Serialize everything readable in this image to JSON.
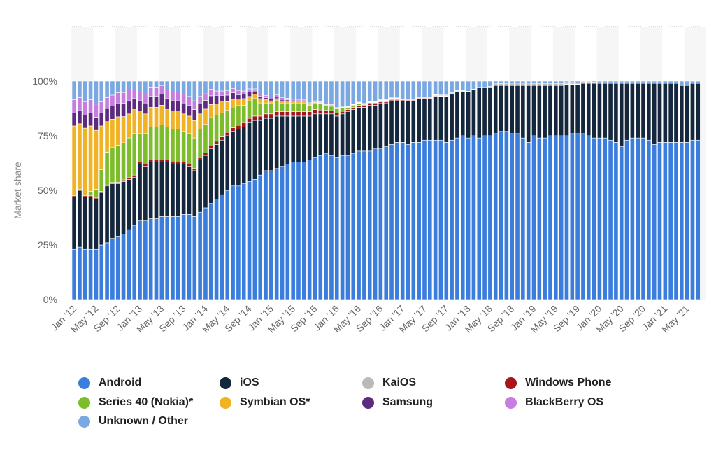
{
  "chart_data": {
    "type": "bar",
    "stacked": true,
    "title": "",
    "xlabel": "",
    "ylabel": "Market share",
    "ylim": [
      0,
      100
    ],
    "y_ticks": [
      "0%",
      "25%",
      "50%",
      "75%",
      "100%"
    ],
    "first_month": "Jan 2012",
    "last_month": "Jul 2021",
    "x_tick_labels": [
      "Jan '12",
      "May '12",
      "Sep '12",
      "Jan '13",
      "May '13",
      "Sep '13",
      "Jan '14",
      "May '14",
      "Sep '14",
      "Jan '15",
      "May '15",
      "Sep '15",
      "Jan '16",
      "May '16",
      "Sep '16",
      "Jan '17",
      "May '17",
      "Sep '17",
      "Jan '18",
      "May '18",
      "Sep '18",
      "Jan '19",
      "May '19",
      "Sep '19",
      "Jan '20",
      "May '20",
      "Sep '20",
      "Jan '21",
      "May '21"
    ],
    "legend_position": "bottom",
    "series": [
      {
        "name": "Android",
        "color": "#3b7ddd",
        "values": [
          23,
          24,
          23,
          23,
          23,
          25,
          26,
          28,
          29,
          30,
          32,
          34,
          36,
          36,
          37,
          37,
          38,
          38,
          38,
          38,
          39,
          39,
          38,
          40,
          42,
          44,
          46,
          48,
          50,
          52,
          52,
          53,
          54,
          55,
          57,
          59,
          59,
          60,
          61,
          62,
          63,
          63,
          63,
          64,
          65,
          66,
          67,
          66,
          65,
          66,
          66,
          67,
          68,
          68,
          68,
          69,
          69,
          70,
          71,
          72,
          72,
          71,
          72,
          72,
          73,
          73,
          73,
          73,
          72,
          73,
          74,
          75,
          74,
          75,
          74,
          75,
          75,
          76,
          77,
          77,
          76,
          76,
          74,
          72,
          75,
          74,
          74,
          75,
          75,
          75,
          75,
          76,
          76,
          76,
          75,
          74,
          74,
          74,
          73,
          72,
          70,
          73,
          74,
          74,
          74,
          73,
          71,
          72,
          72,
          72,
          72,
          72,
          72,
          73,
          73
        ]
      },
      {
        "name": "iOS",
        "color": "#14273c",
        "values": [
          24,
          26,
          24,
          24,
          23,
          24,
          26,
          25,
          24,
          24,
          23,
          22,
          26,
          25,
          26,
          26,
          25,
          25,
          24,
          24,
          23,
          22,
          21,
          24,
          24,
          25,
          25,
          25,
          25,
          25,
          26,
          26,
          27,
          27,
          25,
          24,
          24,
          24,
          23,
          22,
          21,
          21,
          21,
          20,
          20,
          19,
          18,
          19,
          19,
          19,
          20,
          20,
          20,
          20,
          21,
          20,
          21,
          20,
          20,
          19,
          19,
          20,
          19,
          20,
          19,
          19,
          20,
          20,
          21,
          21,
          21,
          20,
          21,
          21,
          23,
          22,
          22,
          22,
          21,
          21,
          22,
          22,
          24,
          26,
          23,
          24,
          24,
          23,
          23,
          23,
          23.5,
          22.5,
          22.5,
          23,
          24,
          25,
          25,
          25,
          26,
          27,
          29,
          26,
          25,
          25,
          25,
          26,
          28,
          27,
          27,
          27,
          27,
          26,
          26,
          26,
          26
        ]
      },
      {
        "name": "Windows Phone",
        "color": "#a5151a",
        "values": [
          0.5,
          0.5,
          0.5,
          0.5,
          0.5,
          0.5,
          0.5,
          0.6,
          0.7,
          0.8,
          1,
          1,
          1,
          1,
          1,
          1,
          1,
          1,
          1,
          1,
          1,
          1,
          1,
          1,
          1.2,
          1.3,
          1.5,
          1.5,
          1.6,
          1.7,
          1.8,
          2,
          2,
          2,
          2,
          2,
          2,
          2,
          2,
          2,
          2,
          2,
          2,
          2,
          2,
          1.8,
          1.6,
          1.5,
          1.4,
          1.2,
          1,
          1,
          0.9,
          0.8,
          0.7,
          0.6,
          0.5,
          0.5,
          0.4,
          0.4,
          0.4,
          0.3,
          0.3,
          0.3,
          0.3,
          0.3,
          0.3,
          0.2,
          0.2,
          0.2,
          0.2,
          0.2,
          0.2,
          0.2,
          0.1,
          0.1,
          0.1,
          0.1,
          0.1,
          0.1,
          0.1,
          0.1,
          0.1,
          0.1,
          0.1,
          0.1,
          0.1,
          0.1,
          0.1,
          0.1,
          0.1,
          0.1,
          0.1,
          0.1,
          0.1,
          0.1,
          0,
          0,
          0,
          0,
          0,
          0,
          0,
          0,
          0,
          0,
          0,
          0,
          0,
          0,
          0,
          0,
          0,
          0,
          0
        ]
      },
      {
        "name": "Series 40 (Nokia)*",
        "color": "#7dbd2c",
        "values": [
          0,
          0,
          0,
          2,
          4,
          10,
          15,
          16,
          17,
          17,
          18,
          19,
          13,
          14,
          15,
          15,
          16,
          15,
          15,
          15,
          14,
          14,
          14,
          13,
          13,
          13,
          12,
          11,
          10,
          9,
          9,
          8,
          8,
          8,
          6,
          5,
          5,
          5,
          4,
          4,
          4,
          4,
          4,
          3,
          3,
          3,
          2,
          2,
          2,
          1.5,
          1,
          1,
          1,
          0.5,
          0.5,
          0.5,
          0.5,
          0.5,
          0.5,
          0.5,
          0.3,
          0.3,
          0.3,
          0.3,
          0.3,
          0.3,
          0.3,
          0.3,
          0.3,
          0.3,
          0.3,
          0.3,
          0.2,
          0.2,
          0.2,
          0.2,
          0.2,
          0.2,
          0.2,
          0.2,
          0.2,
          0.2,
          0.2,
          0.2,
          0.1,
          0.1,
          0.1,
          0.1,
          0.1,
          0.1,
          0.1,
          0.1,
          0.1,
          0.1,
          0.1,
          0.1,
          0,
          0,
          0,
          0,
          0,
          0,
          0,
          0,
          0,
          0,
          0,
          0,
          0,
          0,
          0,
          0,
          0,
          0,
          0
        ]
      },
      {
        "name": "Symbian OS*",
        "color": "#efb325",
        "values": [
          32,
          30,
          31,
          30,
          27,
          20,
          14,
          13,
          13,
          12,
          11,
          11,
          10,
          9,
          9,
          9,
          9,
          8,
          8,
          8,
          8,
          8,
          8,
          7,
          7,
          6,
          5,
          5,
          4,
          4,
          3,
          3,
          2,
          2,
          2,
          1.5,
          1,
          1,
          1,
          1,
          0.8,
          0.5,
          0.5,
          0.4,
          0.3,
          0.3,
          0.2,
          0.2,
          0.1,
          0.1,
          0.1,
          0.1,
          0.1,
          0.1,
          0.1,
          0.1,
          0.1,
          0.1,
          0.1,
          0.1,
          0,
          0,
          0,
          0,
          0,
          0,
          0,
          0,
          0,
          0,
          0,
          0,
          0,
          0,
          0,
          0,
          0,
          0,
          0,
          0,
          0,
          0,
          0,
          0,
          0,
          0,
          0,
          0,
          0,
          0,
          0,
          0,
          0,
          0,
          0,
          0,
          0,
          0,
          0,
          0,
          0,
          0,
          0,
          0,
          0,
          0,
          0,
          0,
          0,
          0,
          0,
          0,
          0,
          0,
          0
        ]
      },
      {
        "name": "Samsung",
        "color": "#5c2a7e",
        "values": [
          6,
          6,
          6,
          6,
          6,
          6,
          6,
          6,
          6,
          6,
          6,
          5,
          5,
          5,
          5,
          5,
          5,
          5,
          5,
          5,
          5,
          5,
          5,
          5,
          4,
          4,
          4,
          3,
          3,
          3,
          2,
          2,
          2,
          1.5,
          1,
          1,
          0.8,
          0.7,
          0.6,
          0.5,
          0.5,
          0.4,
          0.4,
          0.3,
          0.3,
          0.3,
          0.3,
          0.3,
          0.2,
          0.2,
          0.2,
          0.2,
          0.2,
          0.2,
          0.2,
          0.2,
          0.2,
          0.2,
          0.2,
          0.2,
          0.1,
          0.1,
          0.1,
          0.1,
          0.1,
          0.1,
          0.1,
          0.1,
          0.1,
          0.1,
          0.1,
          0.1,
          0,
          0,
          0,
          0,
          0,
          0,
          0,
          0,
          0,
          0,
          0,
          0,
          0,
          0,
          0,
          0,
          0,
          0,
          0,
          0,
          0,
          0,
          0,
          0,
          0,
          0,
          0,
          0,
          0,
          0,
          0,
          0,
          0,
          0,
          0,
          0,
          0,
          0,
          0,
          0,
          0,
          0,
          0
        ]
      },
      {
        "name": "BlackBerry OS",
        "color": "#c57ee0",
        "values": [
          6,
          6,
          6,
          6,
          6,
          5,
          5,
          5,
          5,
          5,
          5,
          4,
          4,
          4,
          4,
          4,
          4,
          4,
          4,
          4,
          4,
          4,
          4,
          3,
          3,
          3,
          2,
          2,
          2,
          2,
          2,
          1.5,
          1.5,
          1,
          1,
          1,
          1,
          1,
          0.8,
          0.7,
          0.6,
          0.5,
          0.5,
          0.4,
          0.4,
          0.3,
          0.3,
          0.3,
          0.2,
          0.2,
          0.2,
          0.2,
          0.2,
          0.2,
          0.2,
          0.2,
          0.2,
          0.2,
          0.2,
          0.2,
          0.1,
          0.1,
          0.1,
          0.1,
          0.1,
          0.1,
          0.1,
          0.1,
          0.1,
          0.1,
          0.1,
          0.1,
          0,
          0,
          0,
          0,
          0,
          0,
          0,
          0,
          0,
          0,
          0,
          0,
          0,
          0,
          0,
          0,
          0,
          0,
          0,
          0,
          0,
          0,
          0,
          0,
          0,
          0,
          0,
          0,
          0,
          0,
          0,
          0,
          0,
          0,
          0,
          0,
          0,
          0,
          0,
          0,
          0,
          0,
          0
        ]
      },
      {
        "name": "KaiOS",
        "color": "#bababa",
        "values": [
          0,
          0,
          0,
          0,
          0,
          0,
          0,
          0,
          0,
          0,
          0,
          0,
          0,
          0,
          0,
          0,
          0,
          0,
          0,
          0,
          0,
          0,
          0,
          0,
          0,
          0,
          0,
          0,
          0,
          0,
          0,
          0,
          0,
          0,
          0,
          0,
          0,
          0,
          0,
          0,
          0,
          0,
          0,
          0,
          0,
          0,
          0,
          0,
          0,
          0,
          0,
          0,
          0,
          0,
          0,
          0,
          0,
          0,
          0,
          0,
          0,
          0,
          0,
          0,
          0,
          0,
          0,
          0,
          0,
          0,
          0,
          0,
          0,
          0,
          0,
          0,
          0.3,
          0.5,
          0.6,
          0.7,
          0.8,
          0.8,
          0.8,
          0.8,
          0.8,
          0.8,
          0.8,
          0.8,
          0.8,
          0.8,
          0.7,
          0.7,
          0.6,
          0.5,
          0.5,
          0.4,
          0.3,
          0.3,
          0.3,
          0.3,
          0.3,
          0.3,
          0.3,
          0.3,
          0.3,
          0.3,
          0.3,
          0.3,
          0.2,
          0.2,
          0.2,
          0.2,
          0.2,
          0.2,
          0.2
        ]
      },
      {
        "name": "Unknown / Other",
        "color": "#7aa8e2",
        "remainder_to_100": true
      }
    ]
  },
  "legend_order": [
    0,
    1,
    7,
    2,
    3,
    4,
    5,
    6,
    8
  ]
}
